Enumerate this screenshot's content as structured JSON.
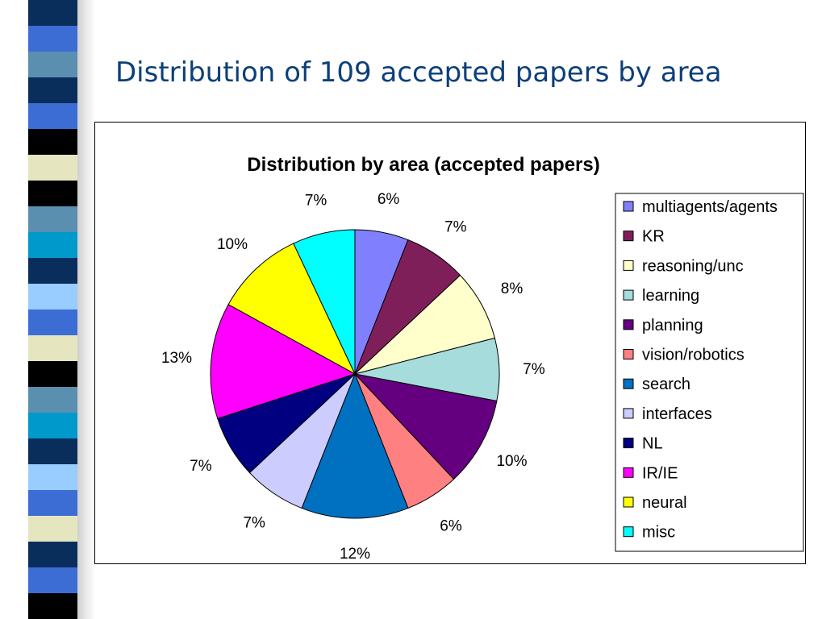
{
  "slide": {
    "title": "Distribution of 109 accepted papers by area"
  },
  "decor": {
    "bar_colors": [
      "#0a2e5c",
      "#3b6dd4",
      "#5a8fb0",
      "#0a2e5c",
      "#3b6dd4",
      "#000000",
      "#e5e5c0",
      "#000000",
      "#5a8fb0",
      "#0099cc",
      "#0a2e5c",
      "#99ccff",
      "#3b6dd4",
      "#e5e5c0",
      "#000000",
      "#5a8fb0",
      "#0099cc",
      "#0a2e5c",
      "#99ccff",
      "#3b6dd4",
      "#e5e5c0",
      "#0a2e5c",
      "#3b6dd4",
      "#000000"
    ]
  },
  "chart_data": {
    "type": "pie",
    "title": "Distribution by area (accepted papers)",
    "categories": [
      "multiagents/agents",
      "KR",
      "reasoning/unc",
      "learning",
      "planning",
      "vision/robotics",
      "search",
      "interfaces",
      "NL",
      "IR/IE",
      "neural",
      "misc"
    ],
    "values": [
      6,
      7,
      8,
      7,
      10,
      6,
      12,
      7,
      7,
      13,
      10,
      7
    ],
    "labels": [
      "6%",
      "7%",
      "8%",
      "7%",
      "10%",
      "6%",
      "12%",
      "7%",
      "7%",
      "13%",
      "10%",
      "7%"
    ],
    "colors": [
      "#8080ff",
      "#7f1f5a",
      "#ffffcc",
      "#a6dcdc",
      "#640080",
      "#ff8080",
      "#0070c0",
      "#ccccff",
      "#000080",
      "#ff00ff",
      "#ffff00",
      "#00ffff"
    ],
    "start_angle_deg": 0,
    "direction": "clockwise",
    "legend_position": "right"
  }
}
